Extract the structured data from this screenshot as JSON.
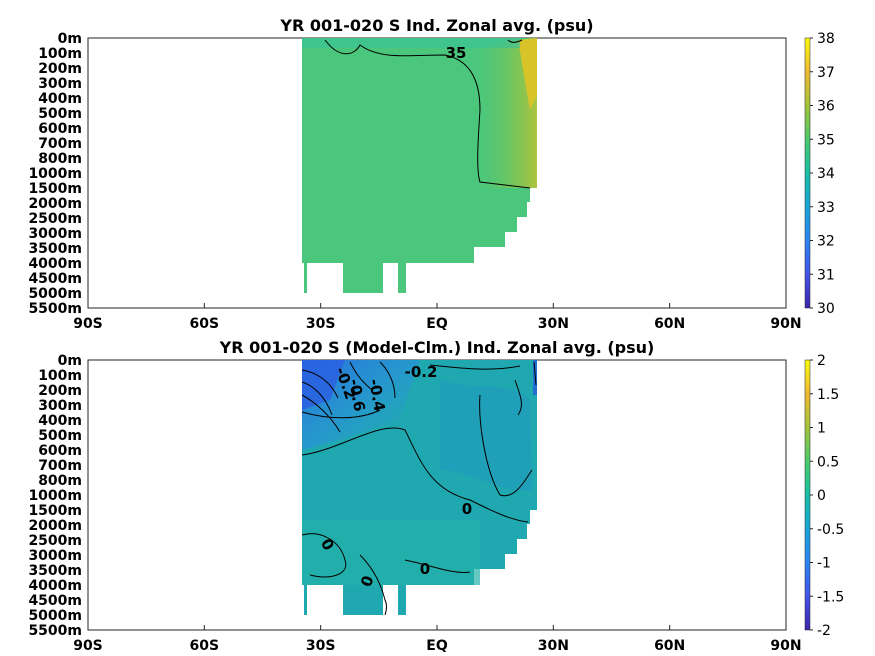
{
  "chart_data": [
    {
      "type": "heatmap",
      "title": "YR 001-020 S Ind. Zonal avg. (psu)",
      "x_ticks": [
        "90S",
        "60S",
        "30S",
        "EQ",
        "30N",
        "60N",
        "90N"
      ],
      "y_ticks": [
        "0m",
        "100m",
        "200m",
        "300m",
        "400m",
        "500m",
        "600m",
        "700m",
        "800m",
        "1000m",
        "1500m",
        "2000m",
        "2500m",
        "3000m",
        "3500m",
        "4000m",
        "4500m",
        "5000m",
        "5500m"
      ],
      "colorbar": {
        "min": 30,
        "max": 38,
        "ticks": [
          "30",
          "31",
          "32",
          "33",
          "34",
          "35",
          "36",
          "37",
          "38"
        ]
      },
      "contour_labels": [
        "35"
      ],
      "colors": {
        "dominant": "#46c882",
        "high": "#aac83c",
        "max": "#e6c81e"
      }
    },
    {
      "type": "heatmap",
      "title": "YR 001-020 S (Model-Clm.) Ind. Zonal avg. (psu)",
      "x_ticks": [
        "90S",
        "60S",
        "30S",
        "EQ",
        "30N",
        "60N",
        "90N"
      ],
      "y_ticks": [
        "0m",
        "100m",
        "200m",
        "300m",
        "400m",
        "500m",
        "600m",
        "700m",
        "800m",
        "1000m",
        "1500m",
        "2000m",
        "2500m",
        "3000m",
        "3500m",
        "4000m",
        "4500m",
        "5000m",
        "5500m"
      ],
      "colorbar": {
        "min": -2,
        "max": 2,
        "ticks": [
          "-2",
          "-1.5",
          "-1",
          "-0.5",
          "0",
          "0.5",
          "1",
          "1.5",
          "2"
        ]
      },
      "contour_labels": [
        "-0.2",
        "-0.6",
        "-0.4",
        "-0.2",
        "0",
        "0",
        "0",
        "0"
      ],
      "colors": {
        "dominant": "#20a8b0",
        "low": "#2a80d8",
        "high": "#36b898"
      }
    }
  ]
}
